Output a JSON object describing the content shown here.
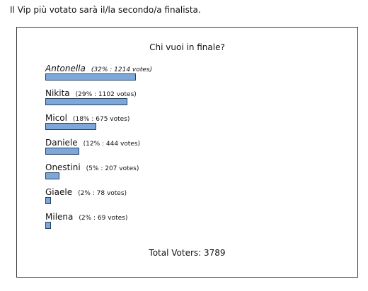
{
  "intro_text": "Il Vip più votato sarà il/la secondo/a finalista.",
  "poll": {
    "question": "Chi vuoi in finale?",
    "total_label": "Total Voters: 3789",
    "bar_color": "#7da7d9",
    "bar_border_color": "#24405e",
    "options": [
      {
        "name": "Antonella",
        "percent": 32,
        "votes": 1214,
        "stats": "(32% : 1214 votes)",
        "italic": true
      },
      {
        "name": "Nikita",
        "percent": 29,
        "votes": 1102,
        "stats": "(29% : 1102 votes)",
        "italic": false
      },
      {
        "name": "Micol",
        "percent": 18,
        "votes": 675,
        "stats": "(18% : 675 votes)",
        "italic": false
      },
      {
        "name": "Daniele",
        "percent": 12,
        "votes": 444,
        "stats": "(12% : 444 votes)",
        "italic": false
      },
      {
        "name": "Onestini",
        "percent": 5,
        "votes": 207,
        "stats": "(5% : 207 votes)",
        "italic": false
      },
      {
        "name": "Giaele",
        "percent": 2,
        "votes": 78,
        "stats": "(2% : 78 votes)",
        "italic": false
      },
      {
        "name": "Milena",
        "percent": 2,
        "votes": 69,
        "stats": "(2% : 69 votes)",
        "italic": false
      }
    ]
  }
}
